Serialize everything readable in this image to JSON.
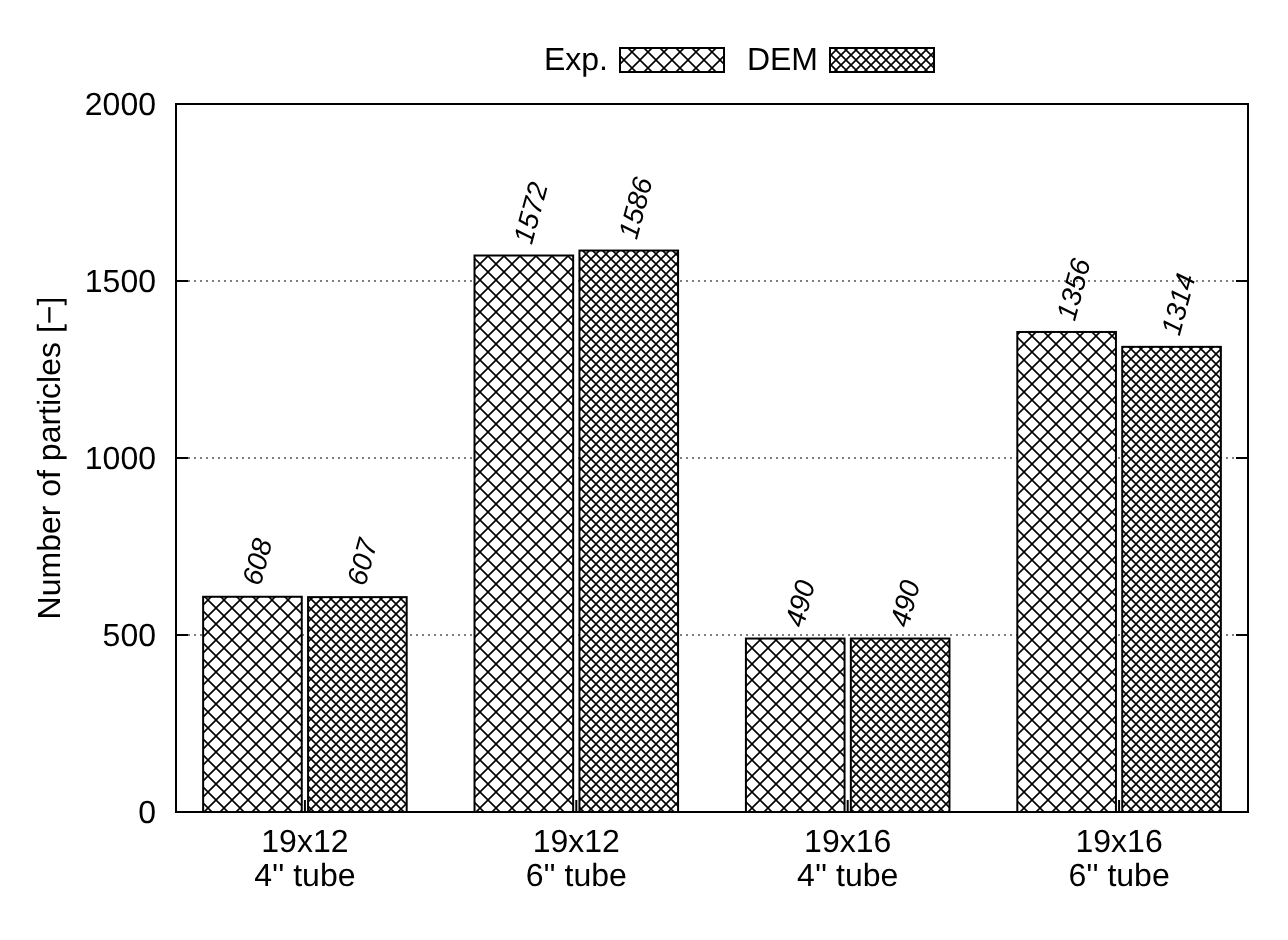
{
  "chart_data": {
    "type": "bar",
    "ylabel": "Number of particles [−]",
    "categories": [
      "19x12\n4'' tube",
      "19x12\n6'' tube",
      "19x16\n4'' tube",
      "19x16\n6'' tube"
    ],
    "series": [
      {
        "name": "Exp.",
        "color": "#000000",
        "values": [
          608,
          1572,
          490,
          1356
        ]
      },
      {
        "name": "DEM",
        "color": "#000000",
        "values": [
          607,
          1586,
          490,
          1314
        ]
      }
    ],
    "ylim": [
      0,
      2000
    ],
    "yticks": [
      0,
      500,
      1000,
      1500,
      2000
    ],
    "grid": "y",
    "legend": "top",
    "data_labels": true
  }
}
